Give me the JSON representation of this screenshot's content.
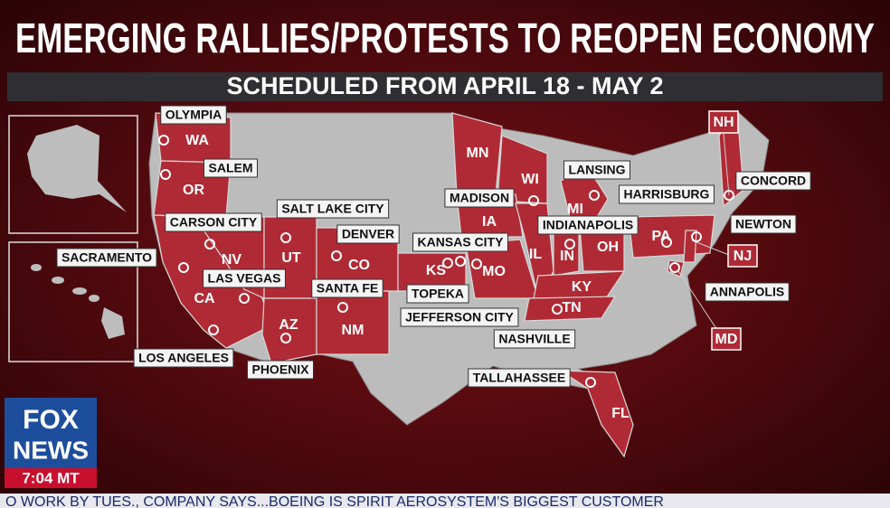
{
  "header": {
    "title": "EMERGING RALLIES/PROTESTS TO REOPEN ECONOMY",
    "subtitle": "SCHEDULED FROM APRIL 18 - MAY 2"
  },
  "map": {
    "cities": [
      "OLYMPIA",
      "SALEM",
      "CARSON CITY",
      "SACRAMENTO",
      "LAS VEGAS",
      "SALT LAKE CITY",
      "DENVER",
      "SANTA FE",
      "PHOENIX",
      "LOS ANGELES",
      "KANSAS CITY",
      "TOPEKA",
      "JEFFERSON CITY",
      "MADISON",
      "LANSING",
      "INDIANAPOLIS",
      "HARRISBURG",
      "CONCORD",
      "NEWTON",
      "ANNAPOLIS",
      "NASHVILLE",
      "TALLAHASSEE"
    ],
    "states": [
      "WA",
      "OR",
      "NV",
      "UT",
      "CO",
      "CA",
      "AZ",
      "NM",
      "MN",
      "WI",
      "MI",
      "IA",
      "IL",
      "IN",
      "OH",
      "PA",
      "KS",
      "MO",
      "KY",
      "TN",
      "FL"
    ],
    "callouts": [
      "NH",
      "NJ",
      "MD"
    ]
  },
  "logo": {
    "line1": "FOX",
    "line2": "NEWS",
    "time": "7:04 MT"
  },
  "ticker": "O WORK BY TUES., COMPANY SAYS...BOEING IS SPIRIT AEROSYSTEM'S BIGGEST CUSTOMER"
}
